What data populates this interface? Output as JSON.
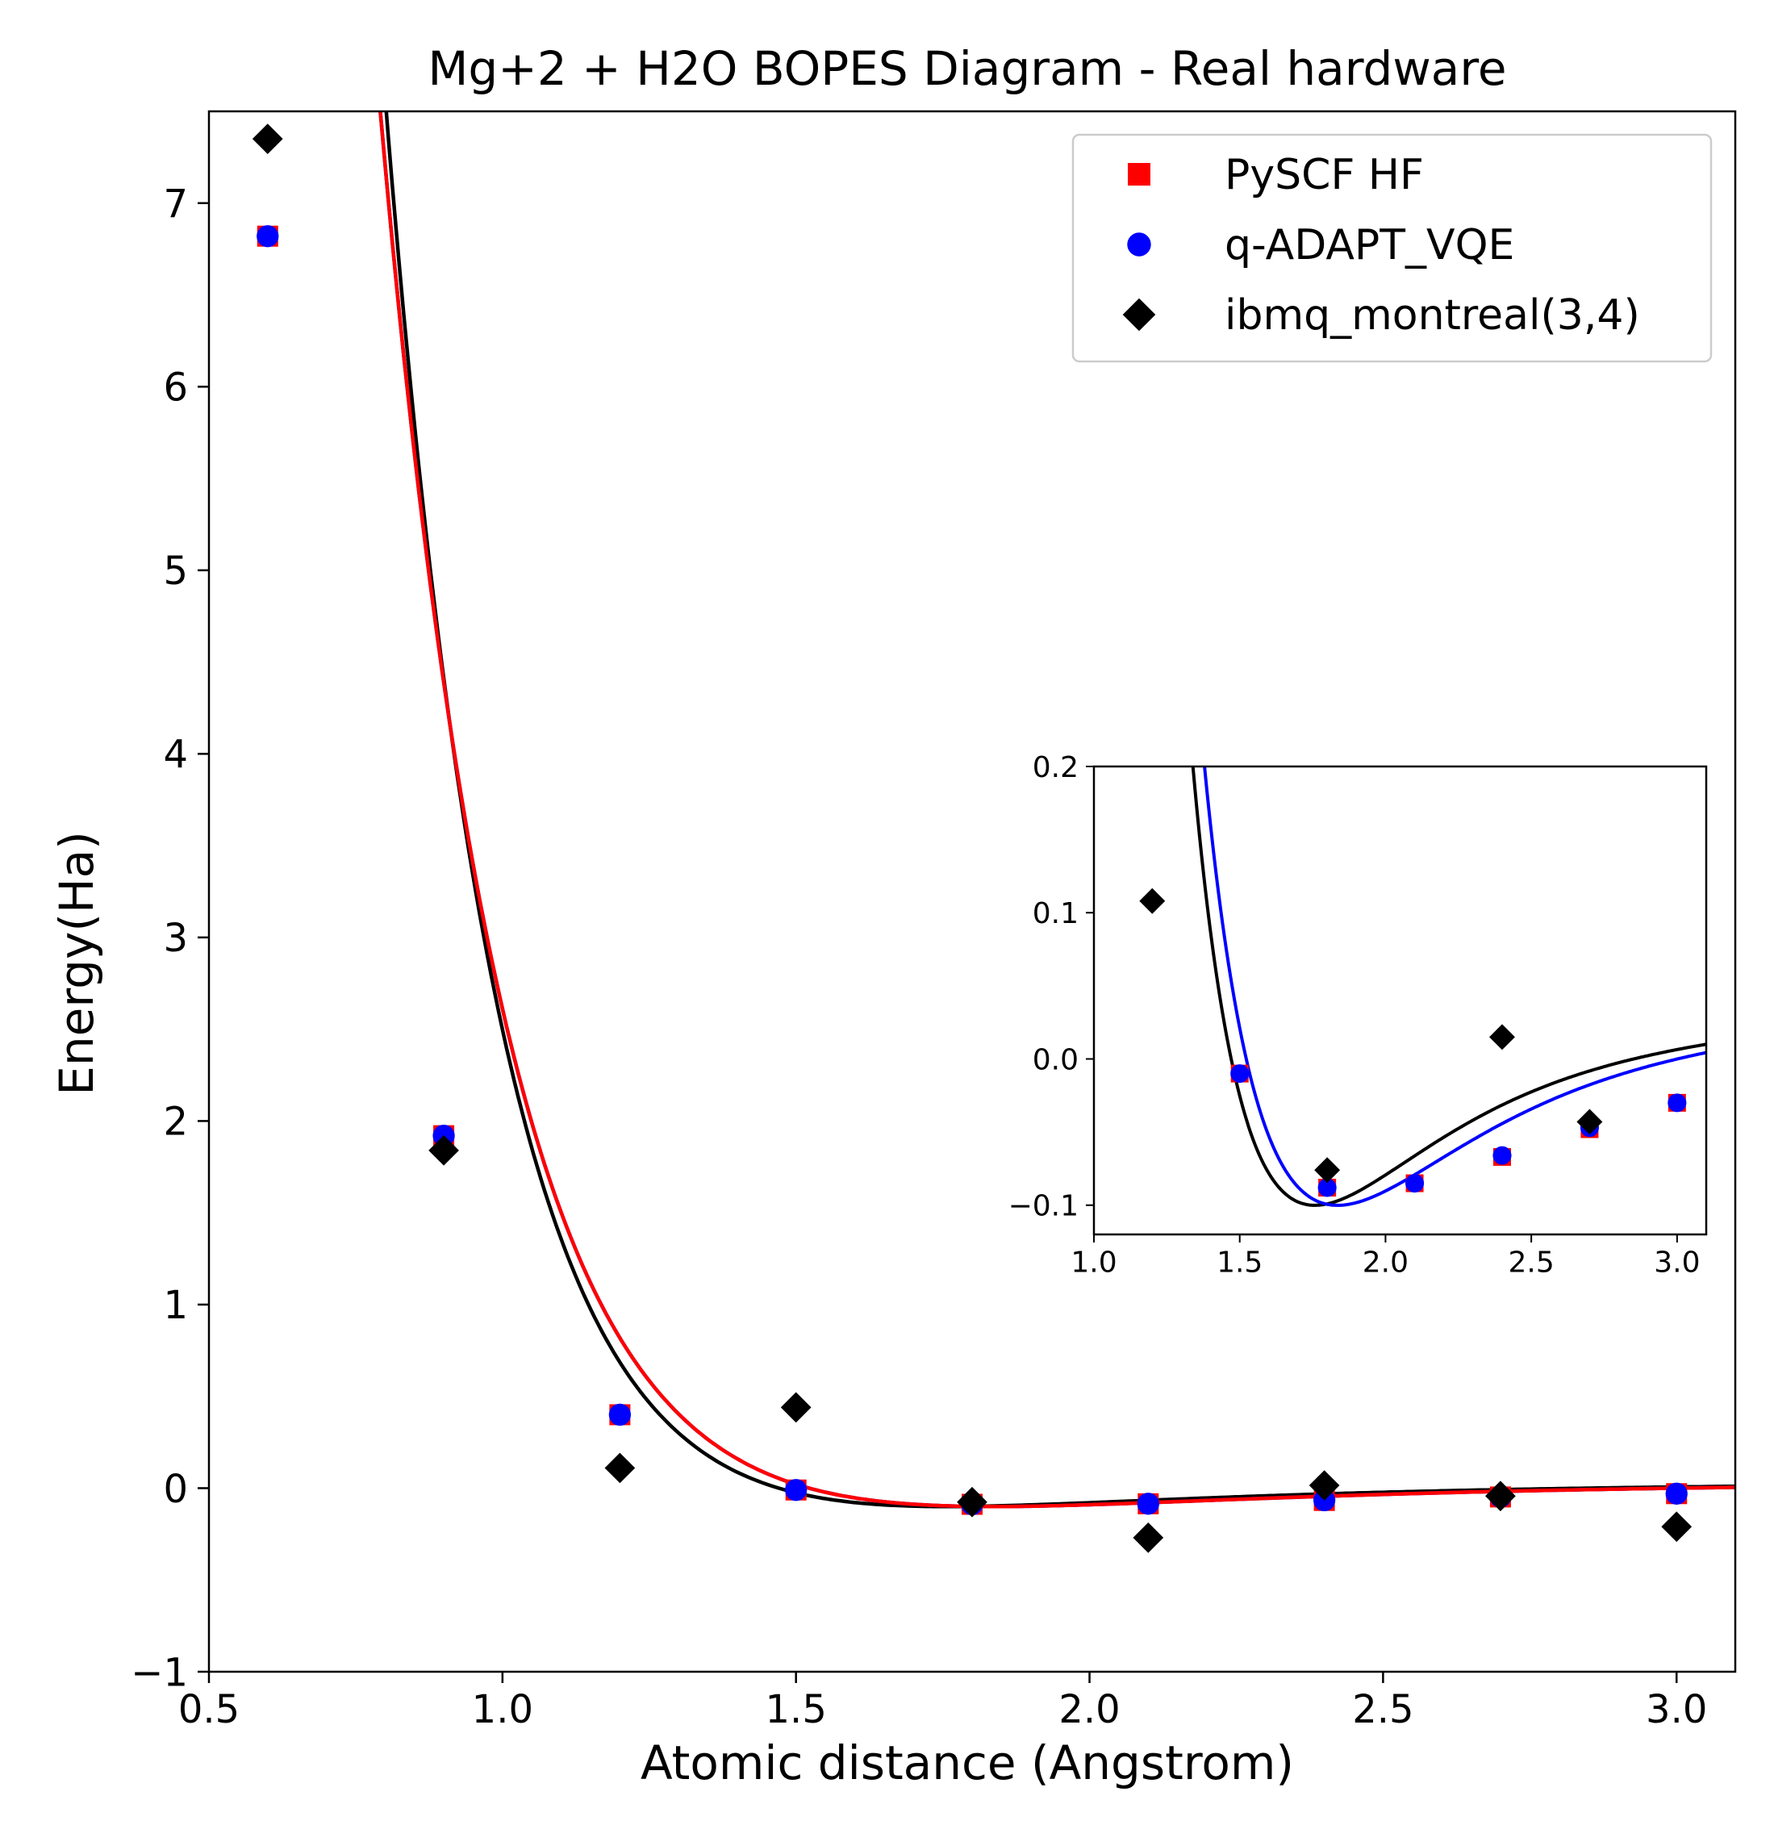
{
  "chart_data": [
    {
      "type": "scatter",
      "title": "Mg+2 + H2O BOPES Diagram - Real hardware",
      "xlabel": "Atomic distance (Angstrom)",
      "ylabel": "Energy(Ha)",
      "xlim": [
        0.5,
        3.1
      ],
      "ylim": [
        -1,
        7.5
      ],
      "xticks": [
        0.5,
        1.0,
        1.5,
        2.0,
        2.5,
        3.0
      ],
      "xtick_labels": [
        "0.5",
        "1.0",
        "1.5",
        "2.0",
        "2.5",
        "3.0"
      ],
      "yticks": [
        -1,
        0,
        1,
        2,
        3,
        4,
        5,
        6,
        7
      ],
      "ytick_labels": [
        "−1",
        "0",
        "1",
        "2",
        "3",
        "4",
        "5",
        "6",
        "7"
      ],
      "grid": false,
      "legend_position": "top-right",
      "series": [
        {
          "name": "PySCF HF",
          "marker": "square",
          "color": "#ff0000",
          "x": [
            0.6,
            0.9,
            1.2,
            1.5,
            1.8,
            2.1,
            2.4,
            2.7,
            3.0
          ],
          "y": [
            6.82,
            1.92,
            0.4,
            -0.01,
            -0.088,
            -0.085,
            -0.067,
            -0.048,
            -0.03
          ]
        },
        {
          "name": "q-ADAPT_VQE",
          "marker": "circle",
          "color": "#0000ff",
          "x": [
            0.6,
            0.9,
            1.2,
            1.5,
            1.8,
            2.1,
            2.4,
            2.7,
            3.0
          ],
          "y": [
            6.82,
            1.92,
            0.4,
            -0.01,
            -0.088,
            -0.085,
            -0.066,
            -0.047,
            -0.03
          ]
        },
        {
          "name": "ibmq_montreal(3,4)",
          "marker": "diamond",
          "color": "#000000",
          "x": [
            0.6,
            0.9,
            1.2,
            1.5,
            1.8,
            2.1,
            2.4,
            2.7,
            3.0
          ],
          "y": [
            7.35,
            1.84,
            0.11,
            0.44,
            -0.076,
            -0.27,
            0.015,
            -0.043,
            -0.21
          ]
        }
      ],
      "fits": [
        {
          "color": "#000000",
          "min_x": 1.77,
          "min_y": -0.1,
          "a": 2.35,
          "tail": 0.014
        },
        {
          "color": "#0000ff",
          "min_x": 1.85,
          "min_y": -0.1,
          "a": 2.15,
          "tail": 0.014
        },
        {
          "color": "#ff0000",
          "min_x": 1.85,
          "min_y": -0.1,
          "a": 2.15,
          "tail": 0.014
        }
      ]
    },
    {
      "type": "scatter",
      "title": "",
      "xlabel": "",
      "ylabel": "",
      "xlim": [
        1.0,
        3.1
      ],
      "ylim": [
        -0.12,
        0.2
      ],
      "xticks": [
        1.0,
        1.5,
        2.0,
        2.5,
        3.0
      ],
      "xtick_labels": [
        "1.0",
        "1.5",
        "2.0",
        "2.5",
        "3.0"
      ],
      "yticks": [
        -0.1,
        0.0,
        0.1,
        0.2
      ],
      "ytick_labels": [
        "−0.1",
        "0.0",
        "0.1",
        "0.2"
      ],
      "grid": false,
      "series": [
        {
          "name": "PySCF HF",
          "marker": "square",
          "color": "#ff0000",
          "x": [
            1.5,
            1.8,
            2.1,
            2.4,
            2.7,
            3.0
          ],
          "y": [
            -0.01,
            -0.088,
            -0.085,
            -0.067,
            -0.048,
            -0.03
          ]
        },
        {
          "name": "q-ADAPT_VQE",
          "marker": "circle",
          "color": "#0000ff",
          "x": [
            1.5,
            1.8,
            2.1,
            2.4,
            2.7,
            3.0
          ],
          "y": [
            -0.01,
            -0.088,
            -0.085,
            -0.066,
            -0.047,
            -0.03
          ]
        },
        {
          "name": "ibmq_montreal(3,4)",
          "marker": "diamond",
          "color": "#000000",
          "x": [
            1.2,
            1.8,
            2.4,
            2.7
          ],
          "y": [
            0.108,
            -0.076,
            0.015,
            -0.043
          ]
        }
      ],
      "fits": [
        {
          "color": "#000000",
          "min_x": 1.77,
          "min_y": -0.1,
          "a": 2.35,
          "tail": 0.014
        },
        {
          "color": "#0000ff",
          "min_x": 1.85,
          "min_y": -0.1,
          "a": 2.15,
          "tail": 0.014
        }
      ]
    }
  ]
}
